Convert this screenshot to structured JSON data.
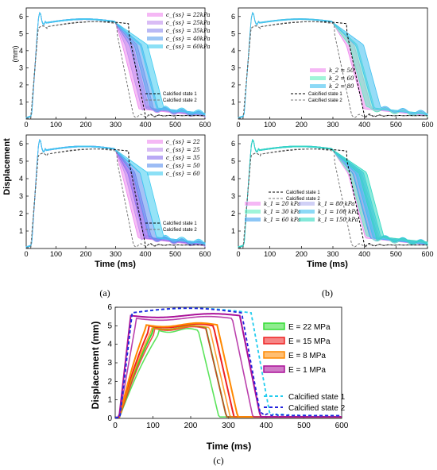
{
  "chart_data": [
    {
      "id": "a_top",
      "type": "line",
      "xlim": [
        0,
        600
      ],
      "ylim": [
        0,
        6.5
      ],
      "xticks": [
        "0",
        "100",
        "200",
        "300",
        "400",
        "500",
        "600"
      ],
      "yticks": [
        "1",
        "2",
        "3",
        "4",
        "5",
        "6"
      ],
      "legend_position": "top-right",
      "series": [
        {
          "name": "c_{ss} = 22kPa",
          "color": "#ee88ee",
          "fall": 380
        },
        {
          "name": "c_{ss} = 25kPa",
          "color": "#c090ee",
          "fall": 390
        },
        {
          "name": "c_{ss} = 35kPa",
          "color": "#8a8aee",
          "fall": 405
        },
        {
          "name": "c_{ss} = 40kPa",
          "color": "#5aa0ee",
          "fall": 420
        },
        {
          "name": "c_{ss} = 60kPa",
          "color": "#40ccf0",
          "fall": 440
        }
      ],
      "refs": [
        {
          "name": "Calcified state 1",
          "color": "#000000",
          "fall": 395
        },
        {
          "name": "Calcified state 2",
          "color": "#777777",
          "fall": 355
        }
      ]
    },
    {
      "id": "a_bottom",
      "type": "line",
      "xlim": [
        0,
        600
      ],
      "ylim": [
        0,
        6.5
      ],
      "xticks": [
        "0",
        "100",
        "200",
        "300",
        "400",
        "500",
        "600"
      ],
      "yticks": [
        "1",
        "2",
        "3",
        "4",
        "5",
        "6"
      ],
      "legend_position": "top-right",
      "series": [
        {
          "name": "c_{ss} = 22",
          "color": "#ee88ee",
          "fall": 378
        },
        {
          "name": "c_{ss} = 25",
          "color": "#c090ee",
          "fall": 388
        },
        {
          "name": "c_{ss} = 35",
          "color": "#8a70ee",
          "fall": 398
        },
        {
          "name": "c_{ss} = 50",
          "color": "#5a90ee",
          "fall": 415
        },
        {
          "name": "c_{ss} = 60",
          "color": "#40ccf0",
          "fall": 440
        }
      ],
      "refs": [
        {
          "name": "Calcified state 1",
          "color": "#000000",
          "fall": 395
        },
        {
          "name": "Calcified state 2",
          "color": "#777777",
          "fall": 355
        }
      ]
    },
    {
      "id": "b_top",
      "type": "line",
      "xlim": [
        0,
        600
      ],
      "ylim": [
        0,
        6.5
      ],
      "xticks": [
        "0",
        "100",
        "200",
        "300",
        "400",
        "500",
        "600"
      ],
      "yticks": [
        "1",
        "2",
        "3",
        "4",
        "5",
        "6"
      ],
      "legend_position": "center",
      "series": [
        {
          "name": "k_2 = 50",
          "color": "#ee88ee",
          "fall": 400
        },
        {
          "name": "k_2 = 60",
          "color": "#60eec0",
          "fall": 410
        },
        {
          "name": "k_2 = 80",
          "color": "#40c0f0",
          "fall": 430
        }
      ],
      "refs": [
        {
          "name": "Calcified state 1",
          "color": "#000000",
          "fall": 395
        },
        {
          "name": "Calcified state 2",
          "color": "#777777",
          "fall": 355
        }
      ]
    },
    {
      "id": "b_bottom",
      "type": "line",
      "xlim": [
        0,
        600
      ],
      "ylim": [
        0,
        6.5
      ],
      "xticks": [
        "0",
        "100",
        "200",
        "300",
        "400",
        "500",
        "600"
      ],
      "yticks": [
        "1",
        "2",
        "3",
        "4",
        "5",
        "6"
      ],
      "legend_position": "bottom-left",
      "series": [
        {
          "name": "k_1 = 20 kPa",
          "color": "#ee88ee",
          "fall": 405
        },
        {
          "name": "k_1 = 30 kPa",
          "color": "#60eec0",
          "fall": 410
        },
        {
          "name": "k_1 = 60 kPa",
          "color": "#40a0f0",
          "fall": 420
        },
        {
          "name": "k_1 = 80 kPa",
          "color": "#b0b0f0",
          "fall": 425
        },
        {
          "name": "k_1 = 100 kPa",
          "color": "#40c0f0",
          "fall": 430
        },
        {
          "name": "k_1 = 150 kPa",
          "color": "#30d8c0",
          "fall": 440
        }
      ],
      "refs": [
        {
          "name": "Calcified state 1",
          "color": "#000000",
          "fall": 395
        },
        {
          "name": "Calcified state 2",
          "color": "#777777",
          "fall": 355
        }
      ]
    },
    {
      "id": "c",
      "type": "line",
      "xlim": [
        0,
        600
      ],
      "ylim": [
        0,
        6
      ],
      "xticks": [
        "0",
        "100",
        "200",
        "300",
        "400",
        "500",
        "600"
      ],
      "yticks": [
        "0",
        "1",
        "2",
        "3",
        "4",
        "5",
        "6"
      ],
      "legend_position": "right",
      "series": [
        {
          "name": "E = 22 MPa",
          "color": "#33dd33",
          "plateau": 4.9,
          "fall": 280,
          "rise": 100
        },
        {
          "name": "E = 15 MPa",
          "color": "#ee2222",
          "plateau": 5.0,
          "fall": 300,
          "rise": 90
        },
        {
          "name": "E = 8 MPa",
          "color": "#ff8800",
          "plateau": 5.05,
          "fall": 310,
          "rise": 80
        },
        {
          "name": "E = 1 MPa",
          "color": "#aa1199",
          "plateau": 5.55,
          "fall": 370,
          "rise": 40
        }
      ],
      "refs": [
        {
          "name": "Calcified state 1",
          "color": "#22ccee",
          "fall": 400
        },
        {
          "name": "Calcified state 2",
          "color": "#2222dd",
          "fall": 375
        }
      ]
    }
  ],
  "labels": {
    "ylabel": "Displacement",
    "ylabel_c": "Displacement (mm)",
    "xlabel": "Time (ms)",
    "a_top_unit": "(mm)",
    "a_bottom_unit": "(mm)",
    "panel_a": "(a)",
    "panel_b": "(b)",
    "panel_c": "(c)"
  }
}
